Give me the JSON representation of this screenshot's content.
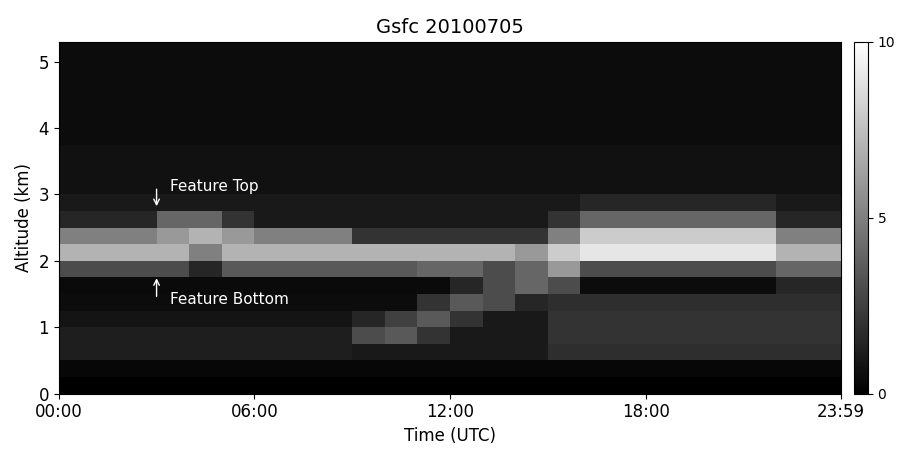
{
  "chart_data": {
    "type": "heatmap",
    "title": "Gsfc 20100705",
    "x_label": "Time (UTC)",
    "y_label": "Altitude (km)",
    "annotations": [
      "Feature Top",
      "Feature Bottom"
    ],
    "xlim": [
      0,
      23.983
    ],
    "xticks": [
      {
        "value": 0,
        "label": "00:00"
      },
      {
        "value": 6,
        "label": "06:00"
      },
      {
        "value": 12,
        "label": "12:00"
      },
      {
        "value": 18,
        "label": "18:00"
      },
      {
        "value": 23.983,
        "label": "23:59"
      }
    ],
    "ylim": [
      0,
      5.3
    ],
    "yticks": [
      0,
      1,
      2,
      3,
      4,
      5
    ],
    "x_edges": [
      0,
      1,
      2,
      3,
      4,
      5,
      6,
      7,
      8,
      9,
      10,
      11,
      12,
      13,
      14,
      15,
      16,
      17,
      18,
      19,
      20,
      21,
      22,
      23,
      24
    ],
    "y_edges": [
      0,
      0.25,
      0.5,
      0.75,
      1.0,
      1.25,
      1.5,
      1.75,
      2.0,
      2.25,
      2.5,
      2.75,
      3.0,
      3.25,
      3.5,
      3.75,
      4.0,
      4.25,
      4.5,
      4.75,
      5.0,
      5.3
    ],
    "cells": [
      [
        0,
        0,
        0,
        0,
        0,
        0,
        0,
        0,
        0,
        0,
        0,
        0,
        0,
        0,
        0,
        0,
        0,
        0,
        0,
        0,
        0,
        0,
        0,
        0
      ],
      [
        0.3,
        0.3,
        0.3,
        0.3,
        0.3,
        0.3,
        0.3,
        0.3,
        0.3,
        0.3,
        0.3,
        0.3,
        0.3,
        0.3,
        0.3,
        0.3,
        0.3,
        0.3,
        0.3,
        0.3,
        0.3,
        0.3,
        0.3,
        0.3
      ],
      [
        1.2,
        1.2,
        1.2,
        1.2,
        1.2,
        1.2,
        1.2,
        1.2,
        1.2,
        1.0,
        1.0,
        1.0,
        1.0,
        1.0,
        1.0,
        1.8,
        1.8,
        1.8,
        1.8,
        1.8,
        1.8,
        1.8,
        1.8,
        1.8
      ],
      [
        1.2,
        1.2,
        1.2,
        1.2,
        1.2,
        1.2,
        1.2,
        1.2,
        1.2,
        3,
        3.5,
        2,
        1,
        1,
        1,
        2,
        2,
        2,
        2,
        2,
        2,
        2,
        2,
        2
      ],
      [
        0.8,
        0.8,
        0.8,
        0.8,
        0.8,
        0.8,
        0.8,
        0.8,
        0.8,
        1.5,
        2.5,
        3.5,
        2,
        1,
        1,
        2,
        2,
        2,
        2,
        2,
        2,
        2,
        2,
        2
      ],
      [
        0.5,
        0.5,
        0.5,
        0.5,
        0.5,
        0.5,
        0.5,
        0.5,
        0.5,
        0.5,
        0.5,
        2,
        3.5,
        3,
        1.5,
        1.8,
        1.8,
        1.8,
        1.8,
        1.8,
        1.8,
        1.8,
        1.8,
        1.8
      ],
      [
        0.4,
        0.4,
        0.4,
        0.4,
        0.4,
        0.4,
        0.4,
        0.4,
        0.4,
        0.4,
        0.4,
        0.4,
        1.5,
        3,
        4,
        3,
        0.5,
        0.5,
        0.5,
        0.5,
        0.5,
        0.5,
        1.5,
        1.5
      ],
      [
        3,
        3,
        3,
        3,
        1.5,
        3.5,
        3.5,
        3.5,
        3.5,
        3.5,
        3.5,
        4,
        4,
        3,
        4,
        6,
        3,
        3,
        3,
        3,
        3,
        3,
        4,
        4
      ],
      [
        7,
        7,
        7,
        7,
        5,
        7,
        7,
        7,
        7,
        7,
        7,
        7,
        7,
        7,
        6,
        8,
        9,
        9,
        9,
        9,
        9,
        9,
        7,
        7
      ],
      [
        5,
        5,
        5,
        6,
        7,
        6,
        5,
        5,
        5,
        2,
        2,
        2,
        2,
        2,
        2,
        5,
        8,
        8,
        8,
        8,
        8,
        8,
        5,
        5
      ],
      [
        1.5,
        1.5,
        1.5,
        4,
        4,
        2,
        1,
        1,
        1,
        1,
        1,
        1,
        1,
        1,
        1,
        2,
        4,
        4,
        4,
        4,
        4,
        4,
        1.5,
        1.5
      ],
      [
        1,
        1,
        1,
        1,
        1,
        1,
        1,
        1,
        1,
        1,
        1,
        1,
        1,
        1,
        1,
        1,
        1.5,
        1.5,
        1.5,
        1.5,
        1.5,
        1.5,
        1,
        1
      ],
      [
        0.7,
        0.7,
        0.7,
        0.7,
        0.7,
        0.7,
        0.7,
        0.7,
        0.7,
        0.7,
        0.7,
        0.7,
        0.7,
        0.7,
        0.7,
        0.7,
        0.7,
        0.7,
        0.7,
        0.7,
        0.7,
        0.7,
        0.7,
        0.7
      ],
      [
        0.7,
        0.7,
        0.7,
        0.7,
        0.7,
        0.7,
        0.7,
        0.7,
        0.7,
        0.7,
        0.7,
        0.7,
        0.7,
        0.7,
        0.7,
        0.7,
        0.7,
        0.7,
        0.7,
        0.7,
        0.7,
        0.7,
        0.7,
        0.7
      ],
      [
        0.7,
        0.7,
        0.7,
        0.7,
        0.7,
        0.7,
        0.7,
        0.7,
        0.7,
        0.7,
        0.7,
        0.7,
        0.7,
        0.7,
        0.7,
        0.7,
        0.7,
        0.7,
        0.7,
        0.7,
        0.7,
        0.7,
        0.7,
        0.7
      ],
      [
        0.5,
        0.5,
        0.5,
        0.5,
        0.5,
        0.5,
        0.5,
        0.5,
        0.5,
        0.5,
        0.5,
        0.5,
        0.5,
        0.5,
        0.5,
        0.5,
        0.5,
        0.5,
        0.5,
        0.5,
        0.5,
        0.5,
        0.5,
        0.5
      ],
      [
        0.5,
        0.5,
        0.5,
        0.5,
        0.5,
        0.5,
        0.5,
        0.5,
        0.5,
        0.5,
        0.5,
        0.5,
        0.5,
        0.5,
        0.5,
        0.5,
        0.5,
        0.5,
        0.5,
        0.5,
        0.5,
        0.5,
        0.5,
        0.5
      ],
      [
        0.5,
        0.5,
        0.5,
        0.5,
        0.5,
        0.5,
        0.5,
        0.5,
        0.5,
        0.5,
        0.5,
        0.5,
        0.5,
        0.5,
        0.5,
        0.5,
        0.5,
        0.5,
        0.5,
        0.5,
        0.5,
        0.5,
        0.5,
        0.5
      ],
      [
        0.5,
        0.5,
        0.5,
        0.5,
        0.5,
        0.5,
        0.5,
        0.5,
        0.5,
        0.5,
        0.5,
        0.5,
        0.5,
        0.5,
        0.5,
        0.5,
        0.5,
        0.5,
        0.5,
        0.5,
        0.5,
        0.5,
        0.5,
        0.5
      ],
      [
        0.5,
        0.5,
        0.5,
        0.5,
        0.5,
        0.5,
        0.5,
        0.5,
        0.5,
        0.5,
        0.5,
        0.5,
        0.5,
        0.5,
        0.5,
        0.5,
        0.5,
        0.5,
        0.5,
        0.5,
        0.5,
        0.5,
        0.5,
        0.5
      ],
      [
        0.5,
        0.5,
        0.5,
        0.5,
        0.5,
        0.5,
        0.5,
        0.5,
        0.5,
        0.5,
        0.5,
        0.5,
        0.5,
        0.5,
        0.5,
        0.5,
        0.5,
        0.5,
        0.5,
        0.5,
        0.5,
        0.5,
        0.5,
        0.5
      ]
    ],
    "colorbar_range": [
      0,
      10
    ],
    "colorbar_ticks": [
      0,
      5,
      10
    ]
  }
}
